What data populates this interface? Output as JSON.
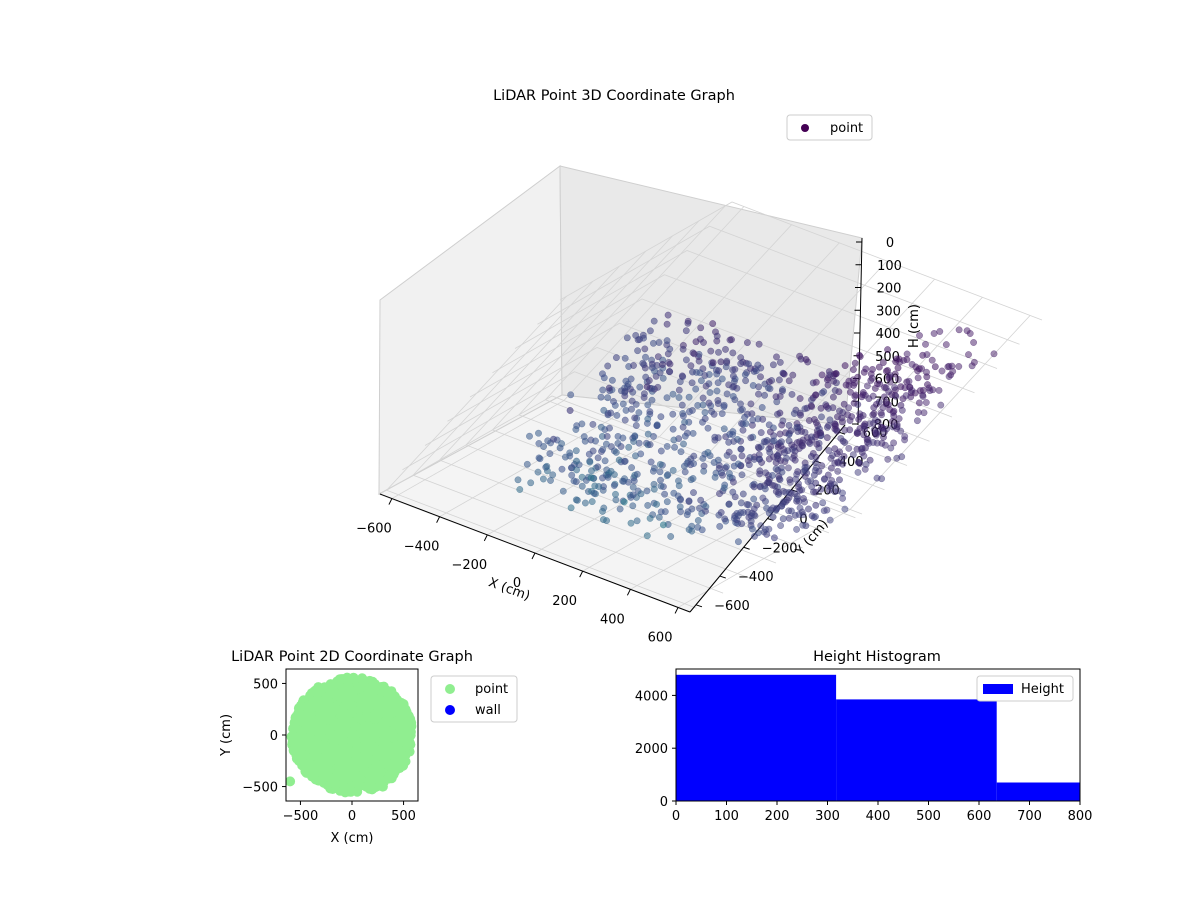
{
  "chart_data": [
    {
      "type": "scatter3d",
      "title": "LiDAR Point 3D Coordinate Graph",
      "xlabel": "X (cm)",
      "ylabel": "Y (cm)",
      "zlabel": "H (cm)",
      "xlim": [
        -650,
        650
      ],
      "ylim": [
        -650,
        650
      ],
      "zlim": [
        0,
        800
      ],
      "z_inverted": true,
      "x_ticks": [
        -600,
        -400,
        -200,
        0,
        200,
        400,
        600
      ],
      "y_ticks": [
        -600,
        -400,
        -200,
        0,
        200,
        400,
        600
      ],
      "z_ticks": [
        0,
        100,
        200,
        300,
        400,
        500,
        600,
        700,
        800
      ],
      "colormap": "viridis",
      "legend": {
        "placement": "top-right",
        "entries": [
          {
            "label": "point",
            "color": "#440154"
          }
        ]
      },
      "series": [
        {
          "name": "point",
          "sample_points": [
            [
              -450,
              120,
              620
            ],
            [
              -380,
              -80,
              650
            ],
            [
              -300,
              -260,
              600
            ],
            [
              -180,
              -420,
              560
            ],
            [
              -60,
              -560,
              540
            ],
            [
              120,
              -600,
              560
            ],
            [
              300,
              -560,
              600
            ],
            [
              -420,
              260,
              560
            ],
            [
              -350,
              400,
              480
            ],
            [
              -200,
              520,
              450
            ],
            [
              0,
              560,
              470
            ],
            [
              200,
              520,
              520
            ],
            [
              380,
              380,
              580
            ],
            [
              480,
              180,
              620
            ],
            [
              520,
              -60,
              640
            ],
            [
              -100,
              -300,
              200
            ],
            [
              -150,
              150,
              320
            ],
            [
              100,
              300,
              260
            ],
            [
              250,
              -100,
              300
            ],
            [
              -260,
              20,
              420
            ]
          ]
        }
      ],
      "grid": true
    },
    {
      "type": "scatter",
      "title": "LiDAR Point 2D Coordinate Graph",
      "xlabel": "X (cm)",
      "ylabel": "Y (cm)",
      "xlim": [
        -640,
        640
      ],
      "ylim": [
        -640,
        640
      ],
      "x_ticks": [
        -500,
        0,
        500
      ],
      "y_ticks": [
        -500,
        0,
        500
      ],
      "legend": {
        "placement": "outside-right",
        "entries": [
          {
            "label": "point",
            "color": "#90ee90"
          },
          {
            "label": "wall",
            "color": "#0000ff"
          }
        ]
      },
      "series": [
        {
          "name": "point",
          "color": "#90ee90",
          "sample_points": [
            [
              -450,
              120
            ],
            [
              -380,
              -80
            ],
            [
              -300,
              -260
            ],
            [
              -180,
              -420
            ],
            [
              0,
              0
            ],
            [
              200,
              400
            ],
            [
              500,
              300
            ],
            [
              -600,
              -450
            ],
            [
              300,
              -500
            ]
          ]
        },
        {
          "name": "wall",
          "color": "#0000ff",
          "sample_points": []
        }
      ]
    },
    {
      "type": "histogram",
      "title": "Height Histogram",
      "xlim": [
        0,
        800
      ],
      "ylim": [
        0,
        5000
      ],
      "x_ticks": [
        0,
        100,
        200,
        300,
        400,
        500,
        600,
        700,
        800
      ],
      "y_ticks": [
        0,
        2000,
        4000
      ],
      "legend": {
        "placement": "top-right",
        "entries": [
          {
            "label": "Height",
            "color": "#0000ff"
          }
        ]
      },
      "bins": [
        {
          "x0": 0,
          "x1": 317,
          "count": 4780
        },
        {
          "x0": 317,
          "x1": 635,
          "count": 3850
        },
        {
          "x0": 635,
          "x1": 800,
          "count": 700
        }
      ],
      "color": "#0000ff"
    }
  ]
}
